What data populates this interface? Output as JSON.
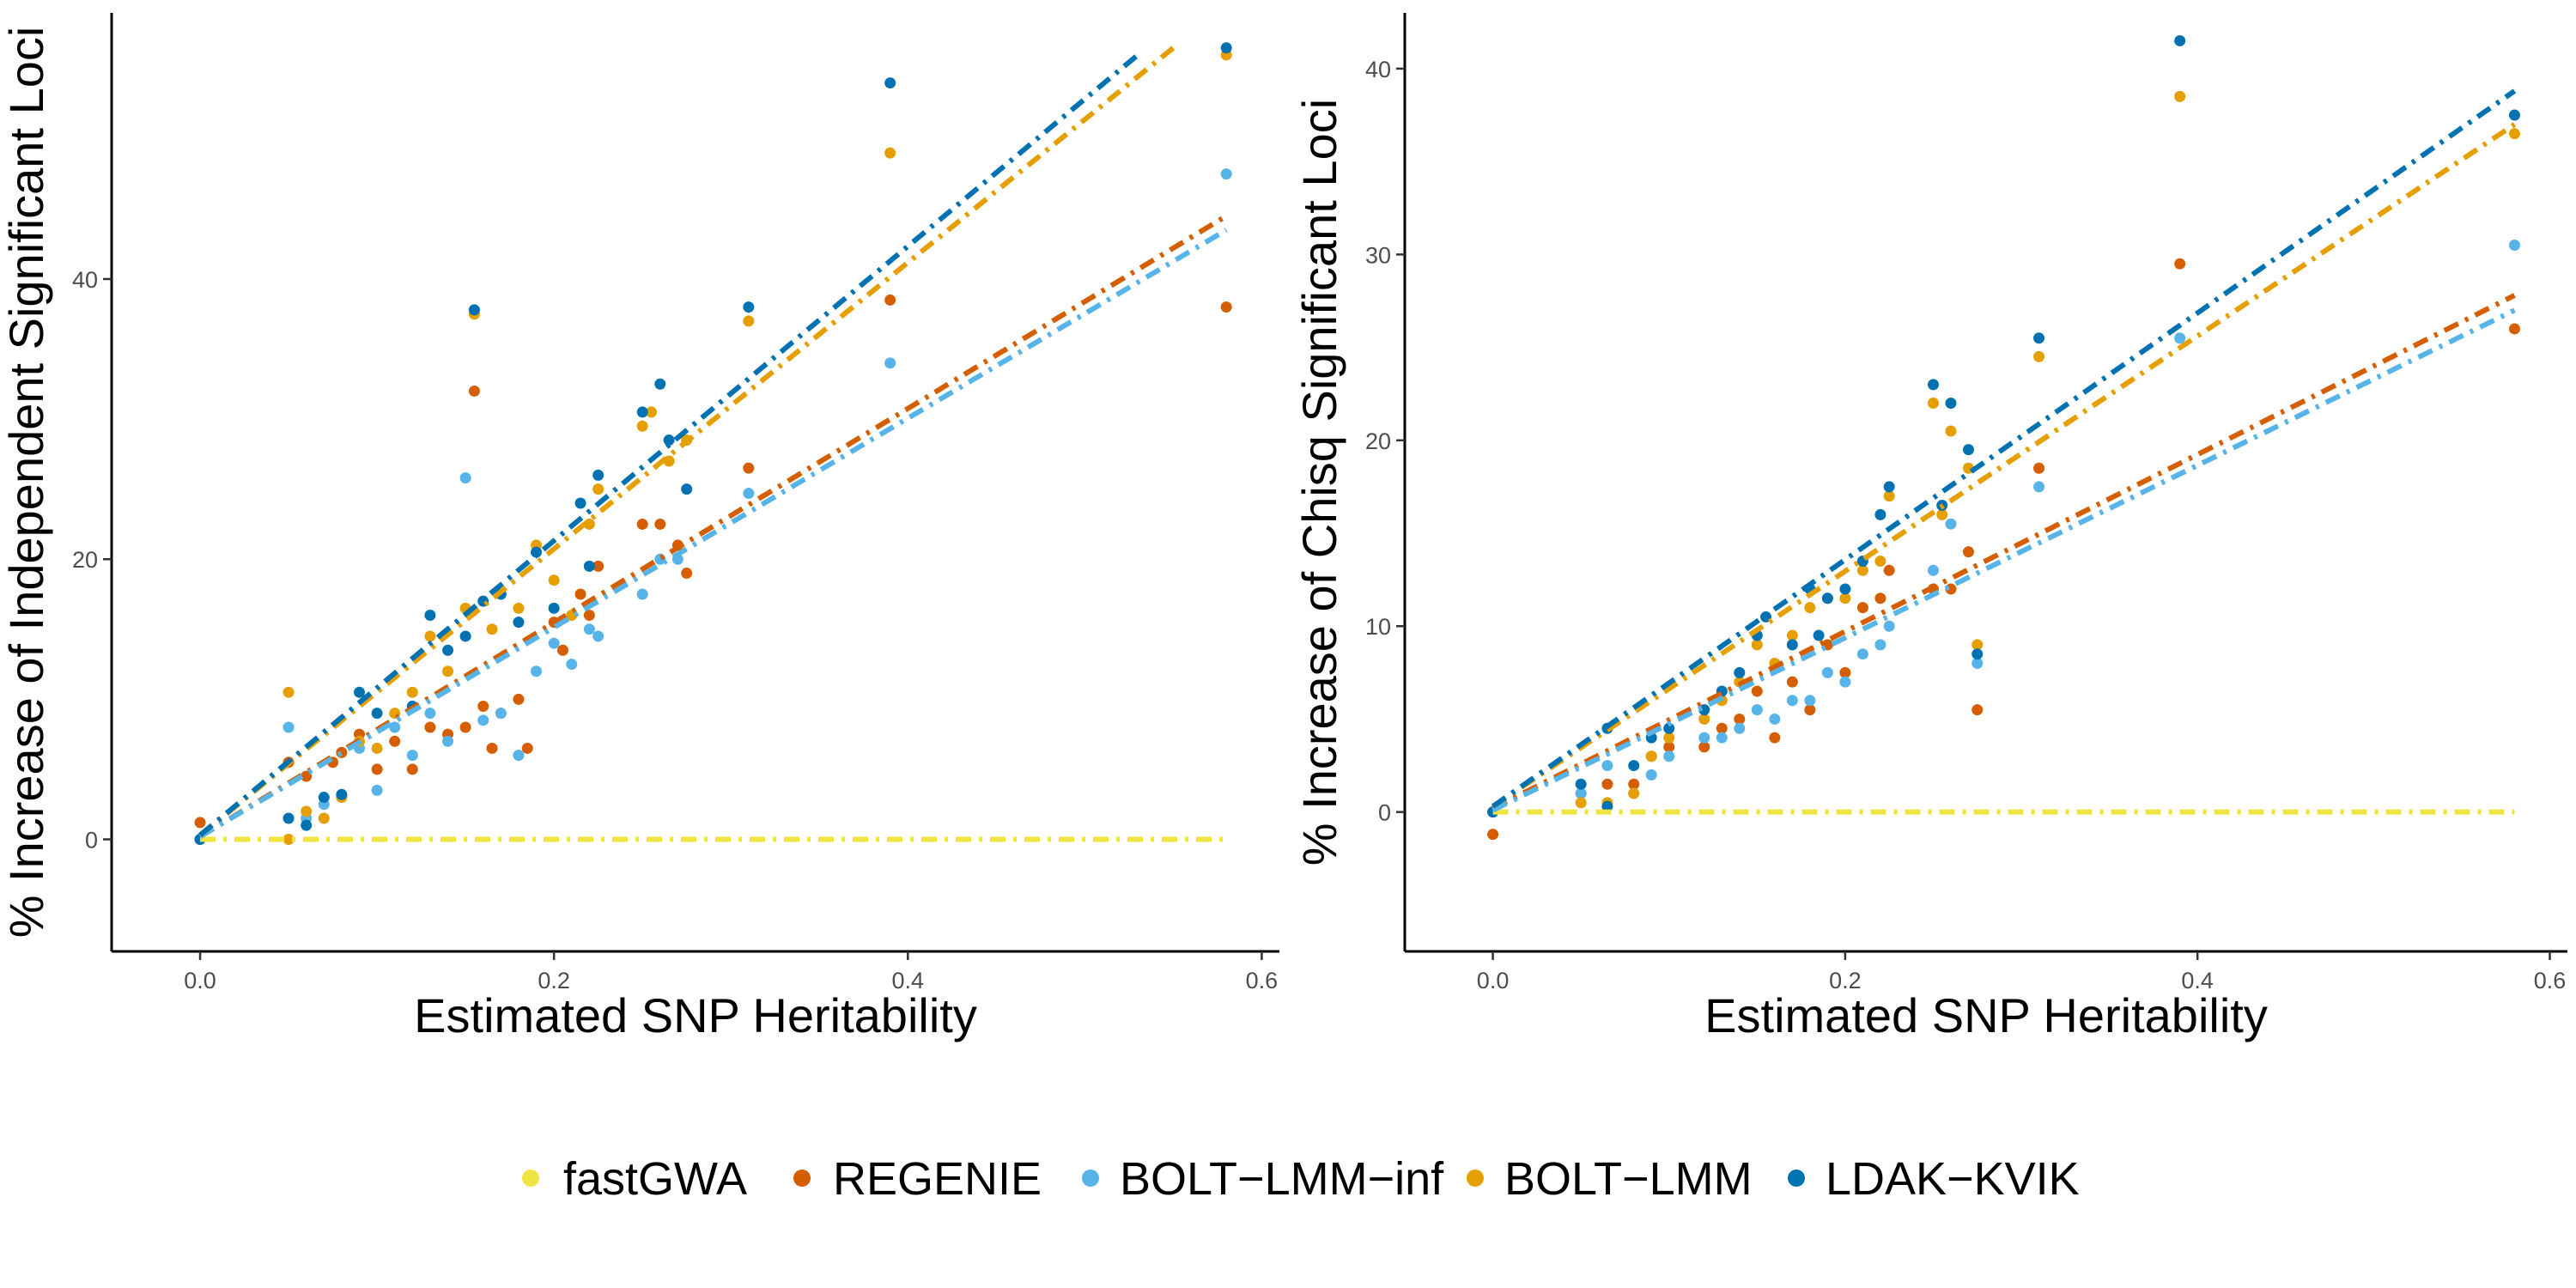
{
  "chart_data": [
    {
      "type": "scatter",
      "xlabel": "Estimated SNP Heritability",
      "ylabel": "% Increase of Independent Significant Loci",
      "xlim": [
        -0.05,
        0.61
      ],
      "ylim": [
        -8,
        59
      ],
      "xticks": [
        "0.0",
        "0.2",
        "0.4",
        "0.6"
      ],
      "xtick_values": [
        0,
        0.2,
        0.4,
        0.6
      ],
      "yticks": [
        "0",
        "20",
        "40"
      ],
      "ytick_values": [
        0,
        20,
        40
      ],
      "grid": false,
      "trend_lines": [
        {
          "name": "fastGWA",
          "x": [
            0,
            0.58
          ],
          "y": [
            0,
            0
          ]
        },
        {
          "name": "REGENIE",
          "x": [
            0,
            0.58
          ],
          "y": [
            0.2,
            44.5
          ]
        },
        {
          "name": "BOLT-LMM-inf",
          "x": [
            0,
            0.58
          ],
          "y": [
            0.2,
            43.5
          ]
        },
        {
          "name": "BOLT-LMM",
          "x": [
            0,
            0.55
          ],
          "y": [
            0.3,
            56.5
          ]
        },
        {
          "name": "LDAK-KVIK",
          "x": [
            0,
            0.53
          ],
          "y": [
            0.3,
            56.0
          ]
        }
      ],
      "series": [
        {
          "name": "REGENIE",
          "points": [
            [
              0,
              1.2
            ],
            [
              0.05,
              5.5
            ],
            [
              0.06,
              4.5
            ],
            [
              0.075,
              5.5
            ],
            [
              0.08,
              6.2
            ],
            [
              0.09,
              7.5
            ],
            [
              0.1,
              5
            ],
            [
              0.11,
              7
            ],
            [
              0.12,
              5
            ],
            [
              0.13,
              8
            ],
            [
              0.14,
              7.5
            ],
            [
              0.15,
              8
            ],
            [
              0.155,
              32
            ],
            [
              0.16,
              9.5
            ],
            [
              0.165,
              6.5
            ],
            [
              0.17,
              9
            ],
            [
              0.18,
              10
            ],
            [
              0.185,
              6.5
            ],
            [
              0.2,
              15.5
            ],
            [
              0.205,
              13.5
            ],
            [
              0.215,
              17.5
            ],
            [
              0.22,
              16
            ],
            [
              0.225,
              19.5
            ],
            [
              0.25,
              22.5
            ],
            [
              0.26,
              22.5
            ],
            [
              0.27,
              21
            ],
            [
              0.275,
              19
            ],
            [
              0.31,
              26.5
            ],
            [
              0.39,
              38.5
            ],
            [
              0.58,
              38
            ]
          ]
        },
        {
          "name": "BOLT-LMM-inf",
          "points": [
            [
              0,
              0
            ],
            [
              0.05,
              8
            ],
            [
              0.06,
              1.5
            ],
            [
              0.07,
              2.5
            ],
            [
              0.08,
              3
            ],
            [
              0.09,
              6.5
            ],
            [
              0.1,
              3.5
            ],
            [
              0.11,
              8
            ],
            [
              0.12,
              6
            ],
            [
              0.13,
              9
            ],
            [
              0.14,
              7
            ],
            [
              0.15,
              25.8
            ],
            [
              0.16,
              8.5
            ],
            [
              0.17,
              9
            ],
            [
              0.18,
              6
            ],
            [
              0.19,
              12
            ],
            [
              0.2,
              14
            ],
            [
              0.21,
              12.5
            ],
            [
              0.22,
              15
            ],
            [
              0.225,
              14.5
            ],
            [
              0.25,
              17.5
            ],
            [
              0.26,
              20
            ],
            [
              0.27,
              20
            ],
            [
              0.31,
              24.7
            ],
            [
              0.39,
              34
            ],
            [
              0.58,
              47.5
            ]
          ]
        },
        {
          "name": "BOLT-LMM",
          "points": [
            [
              0,
              0
            ],
            [
              0.05,
              10.5
            ],
            [
              0.05,
              0
            ],
            [
              0.06,
              2
            ],
            [
              0.07,
              1.5
            ],
            [
              0.08,
              3
            ],
            [
              0.09,
              7
            ],
            [
              0.1,
              6.5
            ],
            [
              0.11,
              9
            ],
            [
              0.12,
              10.5
            ],
            [
              0.13,
              14.5
            ],
            [
              0.14,
              12
            ],
            [
              0.15,
              16.5
            ],
            [
              0.155,
              37.5
            ],
            [
              0.165,
              15
            ],
            [
              0.18,
              16.5
            ],
            [
              0.19,
              21
            ],
            [
              0.2,
              18.5
            ],
            [
              0.21,
              16
            ],
            [
              0.22,
              22.5
            ],
            [
              0.225,
              25
            ],
            [
              0.25,
              29.5
            ],
            [
              0.255,
              30.5
            ],
            [
              0.265,
              27
            ],
            [
              0.275,
              28.5
            ],
            [
              0.31,
              37
            ],
            [
              0.39,
              49
            ],
            [
              0.58,
              56
            ]
          ]
        },
        {
          "name": "LDAK-KVIK",
          "points": [
            [
              0,
              0
            ],
            [
              0.05,
              1.5
            ],
            [
              0.06,
              1
            ],
            [
              0.07,
              3
            ],
            [
              0.08,
              3.2
            ],
            [
              0.09,
              10.5
            ],
            [
              0.1,
              9
            ],
            [
              0.12,
              9.5
            ],
            [
              0.13,
              16
            ],
            [
              0.14,
              13.5
            ],
            [
              0.15,
              14.5
            ],
            [
              0.155,
              37.8
            ],
            [
              0.16,
              17
            ],
            [
              0.17,
              17.5
            ],
            [
              0.18,
              15.5
            ],
            [
              0.19,
              20.5
            ],
            [
              0.2,
              16.5
            ],
            [
              0.215,
              24
            ],
            [
              0.22,
              19.5
            ],
            [
              0.225,
              26
            ],
            [
              0.25,
              30.5
            ],
            [
              0.26,
              32.5
            ],
            [
              0.265,
              28.5
            ],
            [
              0.275,
              25
            ],
            [
              0.31,
              38
            ],
            [
              0.39,
              54
            ],
            [
              0.58,
              56.5
            ]
          ]
        }
      ]
    },
    {
      "type": "scatter",
      "xlabel": "Estimated SNP Heritability",
      "ylabel": "% Increase of Chisq Significant Loci",
      "xlim": [
        -0.05,
        0.61
      ],
      "ylim": [
        -7.5,
        43
      ],
      "xticks": [
        "0.0",
        "0.2",
        "0.4",
        "0.6"
      ],
      "xtick_values": [
        0,
        0.2,
        0.4,
        0.6
      ],
      "yticks": [
        "0",
        "10",
        "20",
        "30",
        "40"
      ],
      "ytick_values": [
        0,
        10,
        20,
        30,
        40
      ],
      "grid": false,
      "trend_lines": [
        {
          "name": "fastGWA",
          "x": [
            0,
            0.58
          ],
          "y": [
            0,
            0
          ]
        },
        {
          "name": "REGENIE",
          "x": [
            0,
            0.58
          ],
          "y": [
            0.2,
            27.8
          ]
        },
        {
          "name": "BOLT-LMM-inf",
          "x": [
            0,
            0.58
          ],
          "y": [
            0.1,
            27.0
          ]
        },
        {
          "name": "BOLT-LMM",
          "x": [
            0,
            0.58
          ],
          "y": [
            0.3,
            37.0
          ]
        },
        {
          "name": "LDAK-KVIK",
          "x": [
            0,
            0.58
          ],
          "y": [
            0.3,
            38.8
          ]
        }
      ],
      "series": [
        {
          "name": "REGENIE",
          "points": [
            [
              0,
              -1.2
            ],
            [
              0.05,
              1
            ],
            [
              0.065,
              1.5
            ],
            [
              0.08,
              1.5
            ],
            [
              0.09,
              3
            ],
            [
              0.1,
              3.5
            ],
            [
              0.12,
              3.5
            ],
            [
              0.13,
              4.5
            ],
            [
              0.14,
              5
            ],
            [
              0.15,
              6.5
            ],
            [
              0.16,
              4
            ],
            [
              0.17,
              7
            ],
            [
              0.18,
              5.5
            ],
            [
              0.19,
              9
            ],
            [
              0.2,
              7.5
            ],
            [
              0.21,
              11
            ],
            [
              0.22,
              11.5
            ],
            [
              0.225,
              13
            ],
            [
              0.25,
              12
            ],
            [
              0.26,
              12
            ],
            [
              0.27,
              14
            ],
            [
              0.275,
              5.5
            ],
            [
              0.31,
              18.5
            ],
            [
              0.39,
              29.5
            ],
            [
              0.58,
              26
            ]
          ]
        },
        {
          "name": "BOLT-LMM-inf",
          "points": [
            [
              0,
              0
            ],
            [
              0.05,
              1
            ],
            [
              0.065,
              2.5
            ],
            [
              0.08,
              1
            ],
            [
              0.09,
              2
            ],
            [
              0.1,
              3
            ],
            [
              0.12,
              4
            ],
            [
              0.13,
              4
            ],
            [
              0.14,
              4.5
            ],
            [
              0.15,
              5.5
            ],
            [
              0.16,
              5
            ],
            [
              0.17,
              6
            ],
            [
              0.18,
              6
            ],
            [
              0.19,
              7.5
            ],
            [
              0.2,
              7
            ],
            [
              0.21,
              8.5
            ],
            [
              0.22,
              9
            ],
            [
              0.225,
              10
            ],
            [
              0.25,
              13
            ],
            [
              0.26,
              15.5
            ],
            [
              0.275,
              8
            ],
            [
              0.31,
              17.5
            ],
            [
              0.39,
              25.5
            ],
            [
              0.58,
              30.5
            ]
          ]
        },
        {
          "name": "BOLT-LMM",
          "points": [
            [
              0,
              0
            ],
            [
              0.05,
              0.5
            ],
            [
              0.065,
              0.5
            ],
            [
              0.08,
              1
            ],
            [
              0.09,
              3
            ],
            [
              0.1,
              4
            ],
            [
              0.12,
              5
            ],
            [
              0.13,
              6
            ],
            [
              0.14,
              7
            ],
            [
              0.15,
              9
            ],
            [
              0.16,
              8
            ],
            [
              0.17,
              9.5
            ],
            [
              0.18,
              11
            ],
            [
              0.19,
              11.5
            ],
            [
              0.2,
              11.5
            ],
            [
              0.21,
              13
            ],
            [
              0.22,
              13.5
            ],
            [
              0.225,
              17
            ],
            [
              0.25,
              22
            ],
            [
              0.255,
              16
            ],
            [
              0.26,
              20.5
            ],
            [
              0.27,
              18.5
            ],
            [
              0.275,
              9
            ],
            [
              0.31,
              24.5
            ],
            [
              0.39,
              38.5
            ],
            [
              0.58,
              36.5
            ]
          ]
        },
        {
          "name": "LDAK-KVIK",
          "points": [
            [
              0,
              0
            ],
            [
              0.05,
              1.5
            ],
            [
              0.065,
              0.3
            ],
            [
              0.065,
              4.5
            ],
            [
              0.08,
              2.5
            ],
            [
              0.09,
              4
            ],
            [
              0.1,
              4.5
            ],
            [
              0.12,
              5.5
            ],
            [
              0.13,
              6.5
            ],
            [
              0.14,
              7.5
            ],
            [
              0.15,
              9.5
            ],
            [
              0.155,
              10.5
            ],
            [
              0.17,
              9
            ],
            [
              0.18,
              12
            ],
            [
              0.185,
              9.5
            ],
            [
              0.19,
              11.5
            ],
            [
              0.2,
              12
            ],
            [
              0.21,
              13.5
            ],
            [
              0.22,
              16
            ],
            [
              0.225,
              17.5
            ],
            [
              0.25,
              23
            ],
            [
              0.255,
              16.5
            ],
            [
              0.26,
              22
            ],
            [
              0.27,
              19.5
            ],
            [
              0.275,
              8.5
            ],
            [
              0.31,
              25.5
            ],
            [
              0.39,
              41.5
            ],
            [
              0.58,
              37.5
            ]
          ]
        }
      ]
    }
  ],
  "legend": {
    "position": "bottom",
    "items": [
      {
        "label": "fastGWA",
        "color": "#F0E442"
      },
      {
        "label": "REGENIE",
        "color": "#D55E00"
      },
      {
        "label": "BOLT−LMM−inf",
        "color": "#56B4E9"
      },
      {
        "label": "BOLT−LMM",
        "color": "#E69F00"
      },
      {
        "label": "LDAK−KVIK",
        "color": "#0072B2"
      }
    ]
  },
  "colors": {
    "fastGWA": "#F0E442",
    "REGENIE": "#D55E00",
    "BOLT-LMM-inf": "#56B4E9",
    "BOLT-LMM": "#E69F00",
    "LDAK-KVIK": "#0072B2"
  }
}
